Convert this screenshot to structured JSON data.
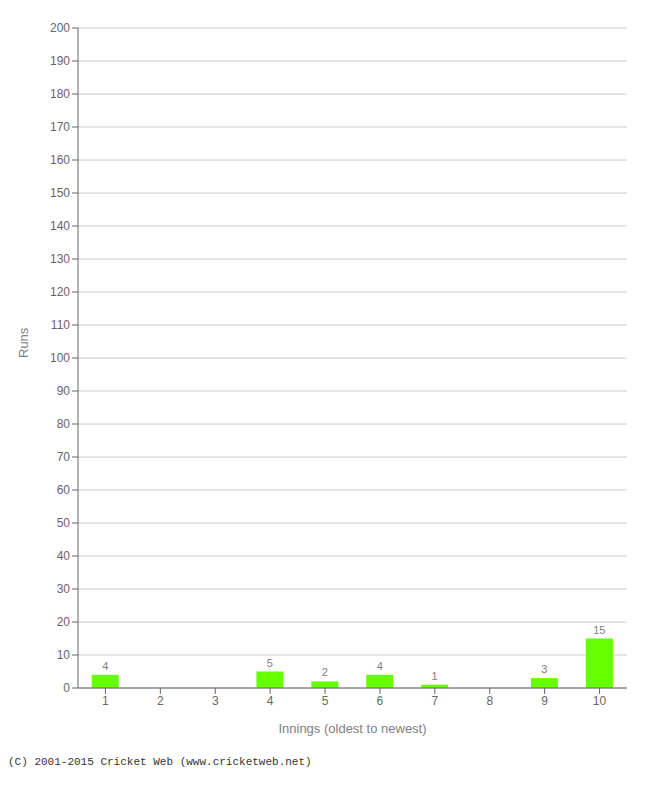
{
  "chart_data": {
    "type": "bar",
    "xlabel": "Innings (oldest to newest)",
    "ylabel": "Runs",
    "categories": [
      "1",
      "2",
      "3",
      "4",
      "5",
      "6",
      "7",
      "8",
      "9",
      "10"
    ],
    "values": [
      4,
      0,
      0,
      5,
      2,
      4,
      1,
      0,
      3,
      15
    ],
    "color": "#66ff00",
    "ylim": [
      0,
      200
    ],
    "yticks": [
      0,
      10,
      20,
      30,
      40,
      50,
      60,
      70,
      80,
      90,
      100,
      110,
      120,
      130,
      140,
      150,
      160,
      170,
      180,
      190,
      200
    ],
    "grid": true,
    "data_labels": true,
    "annotations": [
      "(C) 2001-2015 Cricket Web (www.cricketweb.net)"
    ]
  }
}
